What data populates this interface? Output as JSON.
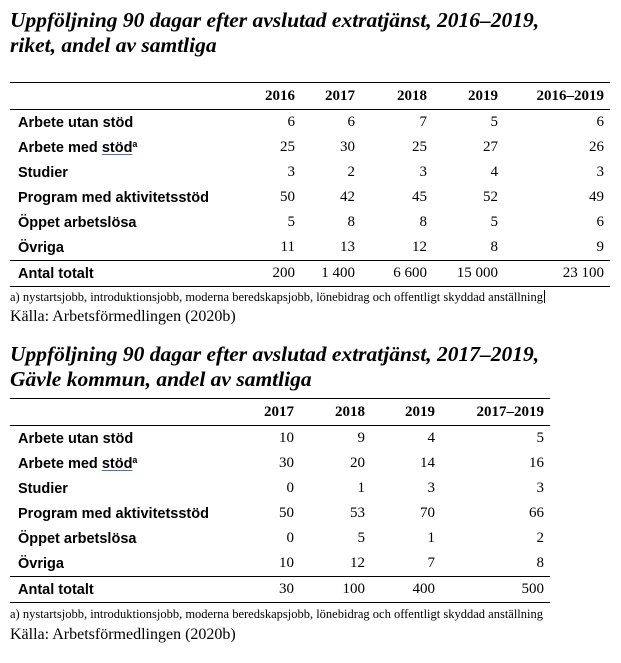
{
  "section1": {
    "title_line1": "Uppföljning 90 dagar efter avslutad extratjänst, 2016–2019,",
    "title_line2": "riket, andel av samtliga",
    "headers": [
      "2016",
      "2017",
      "2018",
      "2019",
      "2016–2019"
    ],
    "rows": [
      {
        "label": "Arbete utan stöd",
        "values": [
          "6",
          "6",
          "7",
          "5",
          "6"
        ]
      },
      {
        "label_prefix": "Arbete med ",
        "label_underlined": "stöd",
        "label_sup": "a",
        "values": [
          "25",
          "30",
          "25",
          "27",
          "26"
        ]
      },
      {
        "label": "Studier",
        "values": [
          "3",
          "2",
          "3",
          "4",
          "3"
        ]
      },
      {
        "label": "Program med aktivitetsstöd",
        "values": [
          "50",
          "42",
          "45",
          "52",
          "49"
        ]
      },
      {
        "label": "Öppet arbetslösa",
        "values": [
          "5",
          "8",
          "8",
          "5",
          "6"
        ]
      },
      {
        "label": "Övriga",
        "values": [
          "11",
          "13",
          "12",
          "8",
          "9"
        ]
      }
    ],
    "total": {
      "label": "Antal totalt",
      "values": [
        "200",
        "1 400",
        "6 600",
        "15 000",
        "23 100"
      ]
    },
    "footnote": "a) nystartsjobb, introduktionsjobb, moderna beredskapsjobb, lönebidrag och offentligt skyddad anställning",
    "source": "Källa: Arbetsförmedlingen (2020b)"
  },
  "section2": {
    "title_line1": "Uppföljning 90 dagar efter avslutad extratjänst, 2017–2019,",
    "title_line2": "Gävle kommun, andel av samtliga",
    "headers": [
      "2017",
      "2018",
      "2019",
      "2017–2019"
    ],
    "rows": [
      {
        "label": "Arbete utan stöd",
        "values": [
          "10",
          "9",
          "4",
          "5"
        ]
      },
      {
        "label_prefix": "Arbete med ",
        "label_underlined": "stöd",
        "label_sup": "a",
        "values": [
          "30",
          "20",
          "14",
          "16"
        ]
      },
      {
        "label": "Studier",
        "values": [
          "0",
          "1",
          "3",
          "3"
        ]
      },
      {
        "label": "Program med aktivitetsstöd",
        "values": [
          "50",
          "53",
          "70",
          "66"
        ]
      },
      {
        "label": "Öppet arbetslösa",
        "values": [
          "0",
          "5",
          "1",
          "2"
        ]
      },
      {
        "label": "Övriga",
        "values": [
          "10",
          "12",
          "7",
          "8"
        ]
      }
    ],
    "total": {
      "label": "Antal totalt",
      "values": [
        "30",
        "100",
        "400",
        "500"
      ]
    },
    "footnote": "a) nystartsjobb, introduktionsjobb, moderna beredskapsjobb, lönebidrag och offentligt skyddad anställning",
    "source": "Källa: Arbetsförmedlingen (2020b)"
  }
}
